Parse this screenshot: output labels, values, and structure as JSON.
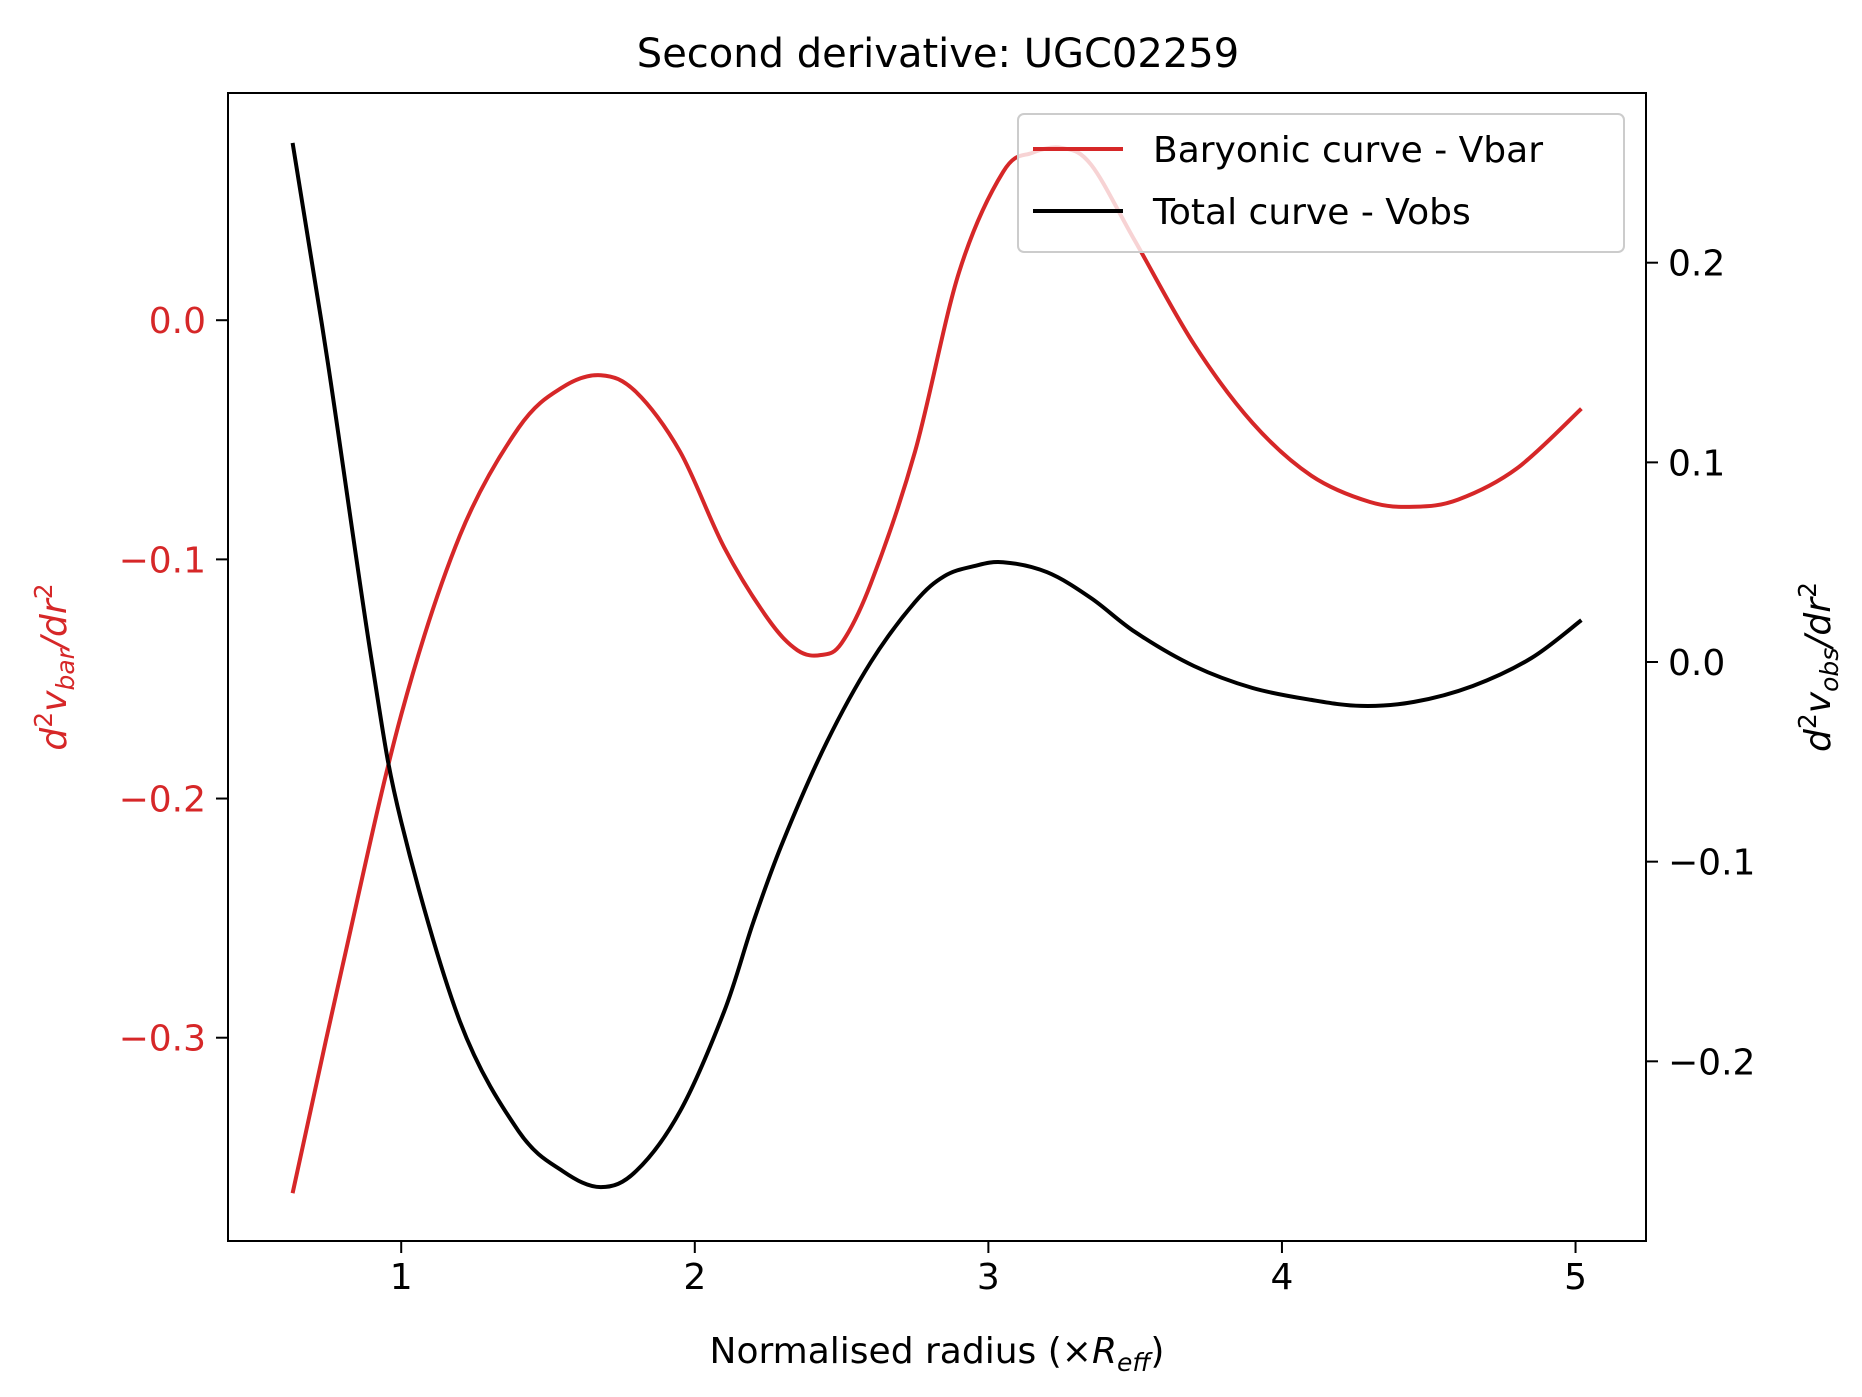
{
  "chart_data": {
    "type": "line",
    "title": "Second derivative: UGC02259",
    "xlabel": {
      "main": "Normalised radius (×",
      "italic": "R",
      "sub": "eff",
      "close": ")"
    },
    "ylabel_left": {
      "d": "d",
      "sup": "2",
      "v": "v",
      "sub": "bar",
      "rest": "/dr",
      "sup2": "2"
    },
    "ylabel_right": {
      "d": "d",
      "sup": "2",
      "v": "v",
      "sub": "obs",
      "rest": "/dr",
      "sup2": "2"
    },
    "xlim": [
      0.41,
      5.24
    ],
    "ylim_left": [
      -0.385,
      0.095
    ],
    "ylim_right": [
      -0.29,
      0.285
    ],
    "xticks": [
      1,
      2,
      3,
      4,
      5
    ],
    "xtick_labels": [
      "1",
      "2",
      "3",
      "4",
      "5"
    ],
    "yticks_left": [
      0.0,
      -0.1,
      -0.2,
      -0.3
    ],
    "yticks_left_labels": [
      "0.0",
      "−0.1",
      "−0.2",
      "−0.3"
    ],
    "yticks_right": [
      0.2,
      0.1,
      0.0,
      -0.1,
      -0.2
    ],
    "yticks_right_labels": [
      "0.2",
      "0.1",
      "0.0",
      "−0.1",
      "−0.2"
    ],
    "grid": false,
    "legend_position": "top-right",
    "colors": {
      "vbar": "#d62728",
      "vobs": "#000000",
      "left_axis_text": "#d62728"
    },
    "series": [
      {
        "name": "Baryonic curve - Vbar",
        "axis": "left",
        "color": "#d62728",
        "x": [
          0.63,
          0.8,
          1.0,
          1.2,
          1.4,
          1.55,
          1.68,
          1.8,
          1.95,
          2.1,
          2.25,
          2.35,
          2.43,
          2.5,
          2.6,
          2.75,
          2.9,
          3.05,
          3.15,
          3.25,
          3.35,
          3.5,
          3.7,
          3.9,
          4.1,
          4.3,
          4.45,
          4.6,
          4.8,
          5.02
        ],
        "y": [
          -0.365,
          -0.27,
          -0.165,
          -0.09,
          -0.045,
          -0.028,
          -0.023,
          -0.03,
          -0.055,
          -0.095,
          -0.125,
          -0.138,
          -0.14,
          -0.135,
          -0.11,
          -0.055,
          0.02,
          0.062,
          0.07,
          0.072,
          0.065,
          0.033,
          -0.01,
          -0.043,
          -0.065,
          -0.076,
          -0.078,
          -0.075,
          -0.062,
          -0.037
        ]
      },
      {
        "name": "Total curve - Vobs",
        "axis": "right",
        "color": "#000000",
        "x": [
          0.63,
          0.75,
          0.9,
          1.0,
          1.2,
          1.4,
          1.55,
          1.68,
          1.8,
          1.95,
          2.1,
          2.2,
          2.3,
          2.45,
          2.6,
          2.75,
          2.85,
          2.95,
          3.05,
          3.2,
          3.35,
          3.5,
          3.7,
          3.9,
          4.1,
          4.27,
          4.45,
          4.65,
          4.85,
          5.02
        ],
        "y": [
          0.26,
          0.15,
          0.0,
          -0.08,
          -0.18,
          -0.235,
          -0.255,
          -0.263,
          -0.255,
          -0.225,
          -0.175,
          -0.13,
          -0.09,
          -0.04,
          0.0,
          0.03,
          0.043,
          0.048,
          0.05,
          0.045,
          0.032,
          0.015,
          -0.002,
          -0.013,
          -0.019,
          -0.022,
          -0.02,
          -0.012,
          0.002,
          0.021
        ]
      }
    ]
  }
}
